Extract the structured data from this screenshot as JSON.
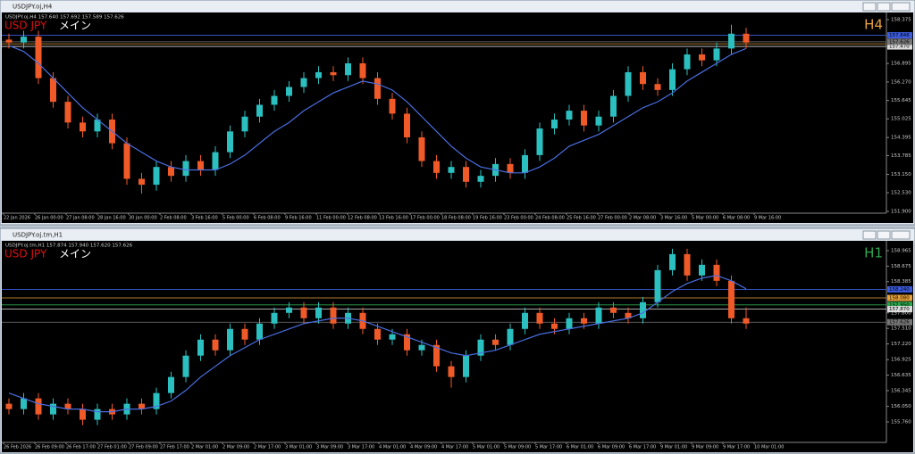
{
  "windows": [
    {
      "title": "USDJPY.oj,H4",
      "chart_data": {
        "type": "candlestick",
        "quote": "USDJPY.oj,H4  157.640 157.692 157.589 157.626",
        "symbol": "USD JPY",
        "mode": "メイン",
        "timeframe": "H4",
        "ylim": [
          151.9,
          158.375
        ],
        "yticks": [
          158.375,
          156.895,
          {
            "value": 156.27,
            "label": "156.270"
          },
          155.645,
          155.025,
          154.395,
          153.785,
          {
            "value": 153.15,
            "label": "153.150"
          },
          {
            "value": 152.53,
            "label": "152.530"
          },
          {
            "value": 151.9,
            "label": "151.900"
          }
        ],
        "price_lines": [
          {
            "value": 157.846,
            "color": "#3b5bdb"
          },
          {
            "value": 157.557,
            "color": "#e8a33c"
          },
          {
            "value": 157.47,
            "label": "157.470",
            "color": "#dddddd"
          },
          {
            "value": 157.626,
            "color": "#777777"
          }
        ],
        "x_labels": [
          "22 Jan 2026",
          "26 Jan 00:00",
          "27 Jan 08:00",
          "28 Jan 16:00",
          "30 Jan 00:00",
          "2 Feb 08:00",
          "3 Feb 16:00",
          "5 Feb 00:00",
          "6 Feb 08:00",
          "9 Feb 16:00",
          "11 Feb 00:00",
          "12 Feb 08:00",
          "13 Feb 16:00",
          "17 Feb 00:00",
          "18 Feb 08:00",
          "19 Feb 16:00",
          "23 Feb 00:00",
          "24 Feb 08:00",
          "25 Feb 16:00",
          "27 Feb 00:00",
          "2 Mar 08:00",
          "3 Mar 16:00",
          "5 Mar 00:00",
          "6 Mar 08:00",
          "9 Mar 16:00"
        ],
        "up_color": "#2bbfbf",
        "down_color": "#f05a28",
        "candles": [
          [
            157.7,
            157.9,
            157.4,
            157.6
          ],
          [
            157.6,
            158.0,
            157.4,
            157.8
          ],
          [
            157.8,
            158.0,
            156.2,
            156.4
          ],
          [
            156.4,
            156.6,
            155.4,
            155.6
          ],
          [
            155.6,
            155.8,
            154.7,
            154.9
          ],
          [
            154.9,
            155.1,
            154.4,
            154.6
          ],
          [
            154.6,
            155.2,
            154.4,
            155.0
          ],
          [
            155.0,
            155.2,
            154.0,
            154.2
          ],
          [
            154.2,
            154.4,
            152.8,
            153.0
          ],
          [
            153.0,
            153.2,
            152.5,
            152.8
          ],
          [
            152.8,
            153.6,
            152.6,
            153.4
          ],
          [
            153.4,
            153.6,
            152.9,
            153.1
          ],
          [
            153.1,
            153.8,
            152.9,
            153.6
          ],
          [
            153.6,
            153.8,
            153.1,
            153.3
          ],
          [
            153.3,
            154.1,
            153.1,
            153.9
          ],
          [
            153.9,
            154.8,
            153.7,
            154.6
          ],
          [
            154.6,
            155.3,
            154.4,
            155.1
          ],
          [
            155.1,
            155.7,
            154.9,
            155.5
          ],
          [
            155.5,
            156.0,
            155.3,
            155.8
          ],
          [
            155.8,
            156.3,
            155.6,
            156.1
          ],
          [
            156.1,
            156.6,
            155.9,
            156.4
          ],
          [
            156.4,
            156.8,
            156.2,
            156.6
          ],
          [
            156.6,
            156.8,
            156.3,
            156.5
          ],
          [
            156.5,
            157.1,
            156.3,
            156.9
          ],
          [
            156.9,
            157.1,
            156.2,
            156.4
          ],
          [
            156.4,
            156.6,
            155.5,
            155.7
          ],
          [
            155.7,
            155.9,
            155.0,
            155.2
          ],
          [
            155.2,
            155.4,
            154.2,
            154.4
          ],
          [
            154.4,
            154.6,
            153.4,
            153.6
          ],
          [
            153.6,
            153.8,
            153.0,
            153.2
          ],
          [
            153.2,
            153.6,
            153.0,
            153.4
          ],
          [
            153.4,
            153.6,
            152.7,
            152.9
          ],
          [
            152.9,
            153.3,
            152.7,
            153.1
          ],
          [
            153.1,
            153.7,
            152.9,
            153.5
          ],
          [
            153.5,
            153.7,
            153.0,
            153.2
          ],
          [
            153.2,
            154.0,
            153.0,
            153.8
          ],
          [
            153.8,
            154.9,
            153.6,
            154.7
          ],
          [
            154.7,
            155.2,
            154.5,
            155.0
          ],
          [
            155.0,
            155.5,
            154.8,
            155.3
          ],
          [
            155.3,
            155.5,
            154.6,
            154.8
          ],
          [
            154.8,
            155.3,
            154.6,
            155.1
          ],
          [
            155.1,
            156.0,
            154.9,
            155.8
          ],
          [
            155.8,
            156.8,
            155.6,
            156.6
          ],
          [
            156.6,
            156.8,
            156.0,
            156.2
          ],
          [
            156.2,
            156.4,
            155.8,
            156.0
          ],
          [
            156.0,
            156.9,
            155.8,
            156.7
          ],
          [
            156.7,
            157.4,
            156.5,
            157.2
          ],
          [
            157.2,
            157.4,
            156.8,
            157.0
          ],
          [
            157.0,
            157.6,
            156.8,
            157.4
          ],
          [
            157.4,
            158.2,
            157.2,
            157.9
          ],
          [
            157.9,
            158.1,
            157.4,
            157.6
          ]
        ],
        "ma": {
          "color": "#4a6ee0",
          "values": [
            157.5,
            157.3,
            156.9,
            156.4,
            155.9,
            155.4,
            155.0,
            154.6,
            154.2,
            153.9,
            153.6,
            153.4,
            153.3,
            153.3,
            153.3,
            153.5,
            153.8,
            154.2,
            154.6,
            154.9,
            155.3,
            155.6,
            155.9,
            156.1,
            156.3,
            156.2,
            156.0,
            155.6,
            155.1,
            154.6,
            154.1,
            153.7,
            153.4,
            153.3,
            153.2,
            153.2,
            153.4,
            153.7,
            154.1,
            154.3,
            154.5,
            154.8,
            155.1,
            155.4,
            155.6,
            155.9,
            156.3,
            156.6,
            156.9,
            157.2,
            157.4
          ]
        },
        "timeframe_color": "#e8a33c"
      }
    },
    {
      "title": "USDJPY.oj.tm,H1",
      "chart_data": {
        "type": "candlestick",
        "quote": "USDJPY.oj.tm,H1  157.874 157.940 157.620 157.626",
        "symbol": "USD JPY",
        "mode": "メイン",
        "timeframe": "H1",
        "ylim": [
          155.76,
          158.965
        ],
        "yticks": [
          158.965,
          158.675,
          158.385,
          {
            "value": 157.8,
            "label": "157.800"
          },
          {
            "value": 157.51,
            "label": "157.510"
          },
          {
            "value": 157.22,
            "label": "157.220"
          },
          156.925,
          156.635,
          156.345,
          {
            "value": 156.05,
            "label": "156.050"
          },
          {
            "value": 155.76,
            "label": "155.760"
          }
        ],
        "price_lines": [
          {
            "value": 158.24,
            "label": "158.240",
            "color": "#3b5bdb"
          },
          {
            "value": 158.08,
            "label": "158.080",
            "color": "#e8a33c"
          },
          {
            "value": 157.95,
            "label": "157.950",
            "color": "#2fa84f"
          },
          {
            "value": 157.87,
            "label": "157.870",
            "color": "#dddddd"
          },
          {
            "value": 157.626,
            "color": "#777777"
          }
        ],
        "x_labels": [
          "26 Feb 2026",
          "26 Feb 09:00",
          "26 Feb 17:00",
          "27 Feb 01:00",
          "27 Feb 09:00",
          "27 Feb 17:00",
          "2 Mar 01:00",
          "2 Mar 09:00",
          "2 Mar 17:00",
          "3 Mar 01:00",
          "3 Mar 09:00",
          "3 Mar 17:00",
          "4 Mar 01:00",
          "4 Mar 09:00",
          "4 Mar 17:00",
          "5 Mar 01:00",
          "5 Mar 09:00",
          "5 Mar 17:00",
          "6 Mar 01:00",
          "6 Mar 09:00",
          "6 Mar 17:00",
          "9 Mar 01:00",
          "9 Mar 09:00",
          "9 Mar 17:00",
          "10 Mar 01:00"
        ],
        "up_color": "#2bbfbf",
        "down_color": "#f05a28",
        "candles": [
          [
            156.1,
            156.2,
            155.9,
            156.0
          ],
          [
            156.0,
            156.3,
            155.9,
            156.2
          ],
          [
            156.2,
            156.3,
            155.8,
            155.9
          ],
          [
            155.9,
            156.2,
            155.8,
            156.1
          ],
          [
            156.1,
            156.2,
            155.9,
            156.0
          ],
          [
            156.0,
            156.1,
            155.7,
            155.8
          ],
          [
            155.8,
            156.1,
            155.7,
            156.0
          ],
          [
            156.0,
            156.1,
            155.8,
            155.9
          ],
          [
            155.9,
            156.2,
            155.8,
            156.1
          ],
          [
            156.1,
            156.2,
            155.9,
            156.0
          ],
          [
            156.0,
            156.4,
            155.9,
            156.3
          ],
          [
            156.3,
            156.7,
            156.2,
            156.6
          ],
          [
            156.6,
            157.1,
            156.5,
            157.0
          ],
          [
            157.0,
            157.4,
            156.9,
            157.3
          ],
          [
            157.3,
            157.4,
            157.0,
            157.1
          ],
          [
            157.1,
            157.6,
            157.0,
            157.5
          ],
          [
            157.5,
            157.6,
            157.2,
            157.3
          ],
          [
            157.3,
            157.7,
            157.2,
            157.6
          ],
          [
            157.6,
            157.9,
            157.5,
            157.8
          ],
          [
            157.8,
            158.0,
            157.7,
            157.9
          ],
          [
            157.9,
            158.0,
            157.6,
            157.7
          ],
          [
            157.7,
            158.0,
            157.6,
            157.9
          ],
          [
            157.9,
            158.0,
            157.5,
            157.6
          ],
          [
            157.6,
            157.9,
            157.5,
            157.8
          ],
          [
            157.8,
            157.9,
            157.4,
            157.5
          ],
          [
            157.5,
            157.6,
            157.2,
            157.3
          ],
          [
            157.3,
            157.5,
            157.2,
            157.4
          ],
          [
            157.4,
            157.5,
            157.0,
            157.1
          ],
          [
            157.1,
            157.3,
            157.0,
            157.2
          ],
          [
            157.2,
            157.3,
            156.7,
            156.8
          ],
          [
            156.8,
            156.9,
            156.4,
            156.6
          ],
          [
            156.6,
            157.1,
            156.5,
            157.0
          ],
          [
            157.0,
            157.4,
            156.9,
            157.3
          ],
          [
            157.3,
            157.4,
            157.1,
            157.2
          ],
          [
            157.2,
            157.6,
            157.1,
            157.5
          ],
          [
            157.5,
            157.9,
            157.4,
            157.8
          ],
          [
            157.8,
            157.9,
            157.5,
            157.6
          ],
          [
            157.6,
            157.7,
            157.4,
            157.5
          ],
          [
            157.5,
            157.8,
            157.4,
            157.7
          ],
          [
            157.7,
            157.8,
            157.5,
            157.6
          ],
          [
            157.6,
            158.0,
            157.5,
            157.9
          ],
          [
            157.9,
            158.0,
            157.7,
            157.8
          ],
          [
            157.8,
            157.9,
            157.6,
            157.7
          ],
          [
            157.7,
            158.1,
            157.6,
            158.0
          ],
          [
            158.0,
            158.7,
            157.9,
            158.6
          ],
          [
            158.6,
            159.0,
            158.5,
            158.9
          ],
          [
            158.9,
            159.0,
            158.4,
            158.5
          ],
          [
            158.5,
            158.8,
            158.4,
            158.7
          ],
          [
            158.7,
            158.8,
            158.3,
            158.4
          ],
          [
            158.4,
            158.5,
            157.6,
            157.7
          ],
          [
            157.7,
            157.9,
            157.5,
            157.6
          ]
        ],
        "ma": {
          "color": "#4a6ee0",
          "values": [
            156.3,
            156.2,
            156.1,
            156.05,
            156.0,
            156.0,
            155.95,
            155.95,
            156.0,
            156.0,
            156.05,
            156.15,
            156.35,
            156.6,
            156.8,
            157.0,
            157.15,
            157.3,
            157.4,
            157.5,
            157.6,
            157.65,
            157.7,
            157.7,
            157.65,
            157.55,
            157.45,
            157.35,
            157.25,
            157.15,
            157.05,
            157.0,
            157.05,
            157.1,
            157.2,
            157.3,
            157.4,
            157.45,
            157.5,
            157.55,
            157.6,
            157.65,
            157.7,
            157.8,
            158.0,
            158.2,
            158.35,
            158.45,
            158.5,
            158.4,
            158.25
          ]
        },
        "timeframe_color": "#2fa84f"
      }
    }
  ]
}
